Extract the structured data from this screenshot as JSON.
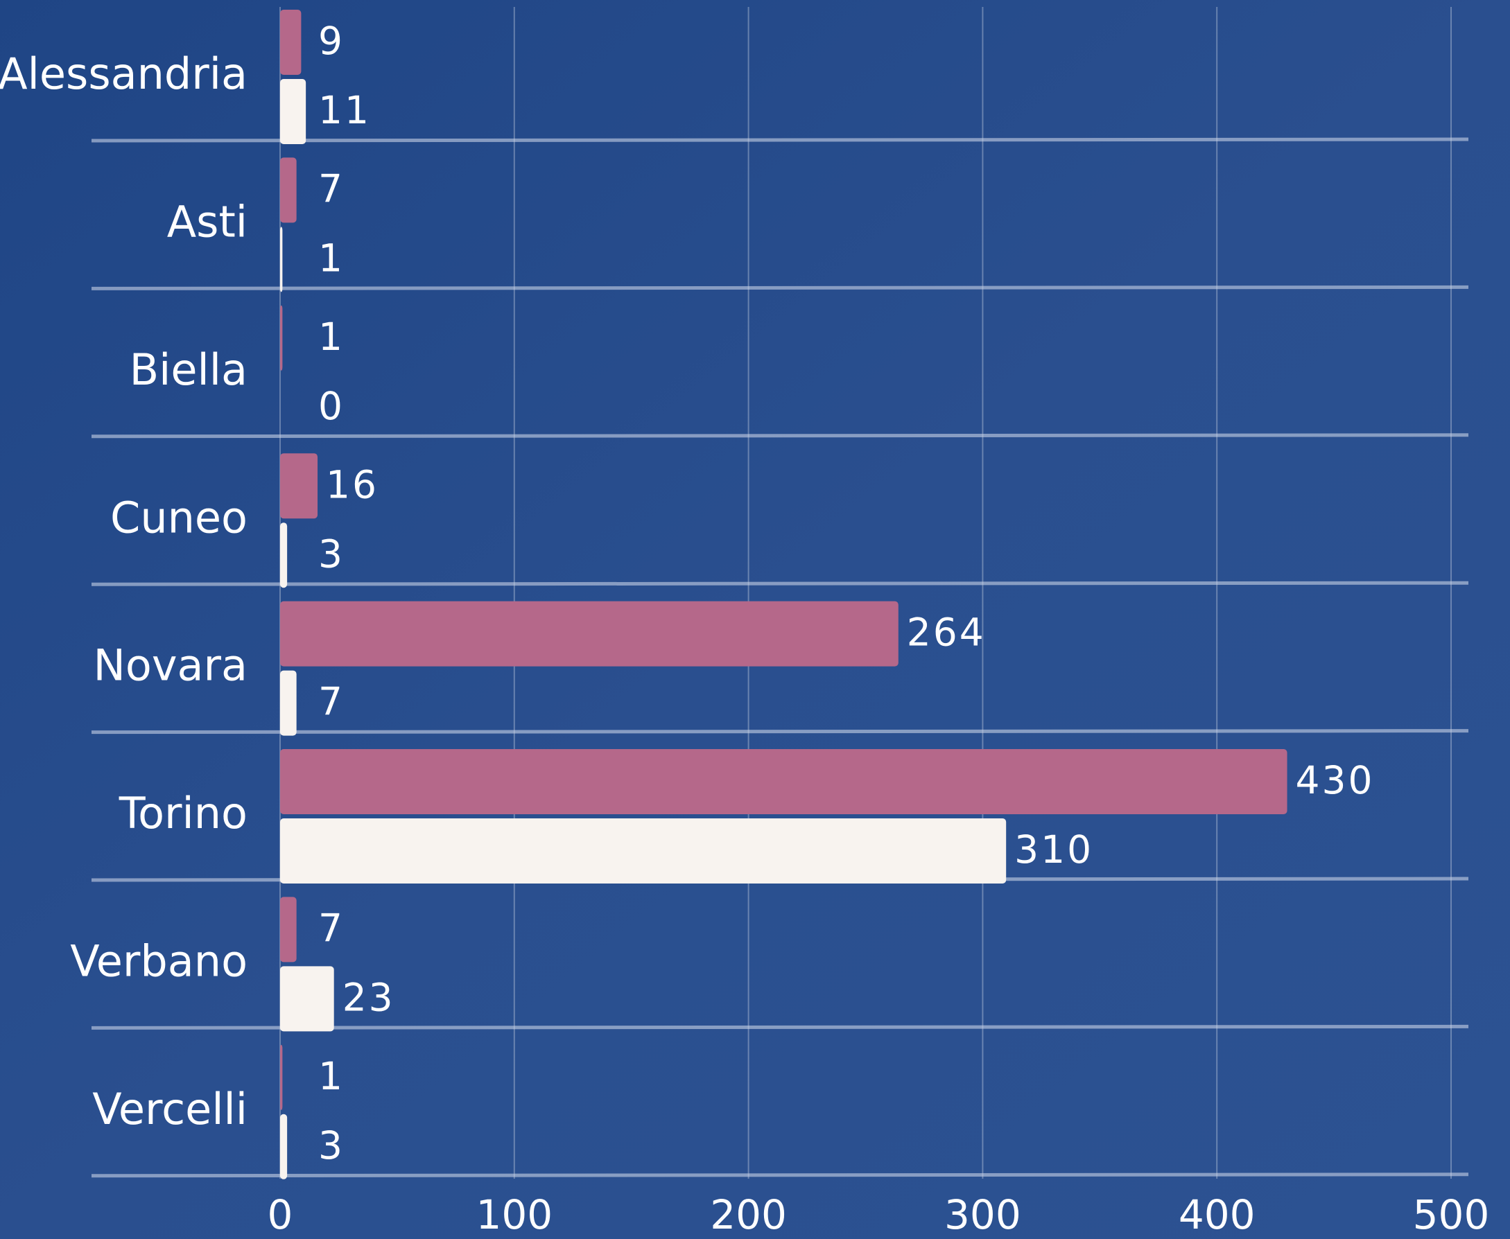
{
  "chart_data": {
    "type": "bar",
    "orientation": "horizontal",
    "categories": [
      "Alessandria",
      "Asti",
      "Biella",
      "Cuneo",
      "Novara",
      "Torino",
      "Verbano",
      "Vercelli"
    ],
    "series": [
      {
        "color": "#b5688a",
        "values": [
          9,
          7,
          1,
          16,
          264,
          430,
          7,
          1
        ]
      },
      {
        "color": "#f8f3ef",
        "values": [
          11,
          1,
          0,
          3,
          7,
          310,
          23,
          3
        ]
      }
    ],
    "xlim": [
      0,
      500
    ],
    "xticks": [
      0,
      100,
      200,
      300,
      400,
      500
    ],
    "grid": true
  }
}
